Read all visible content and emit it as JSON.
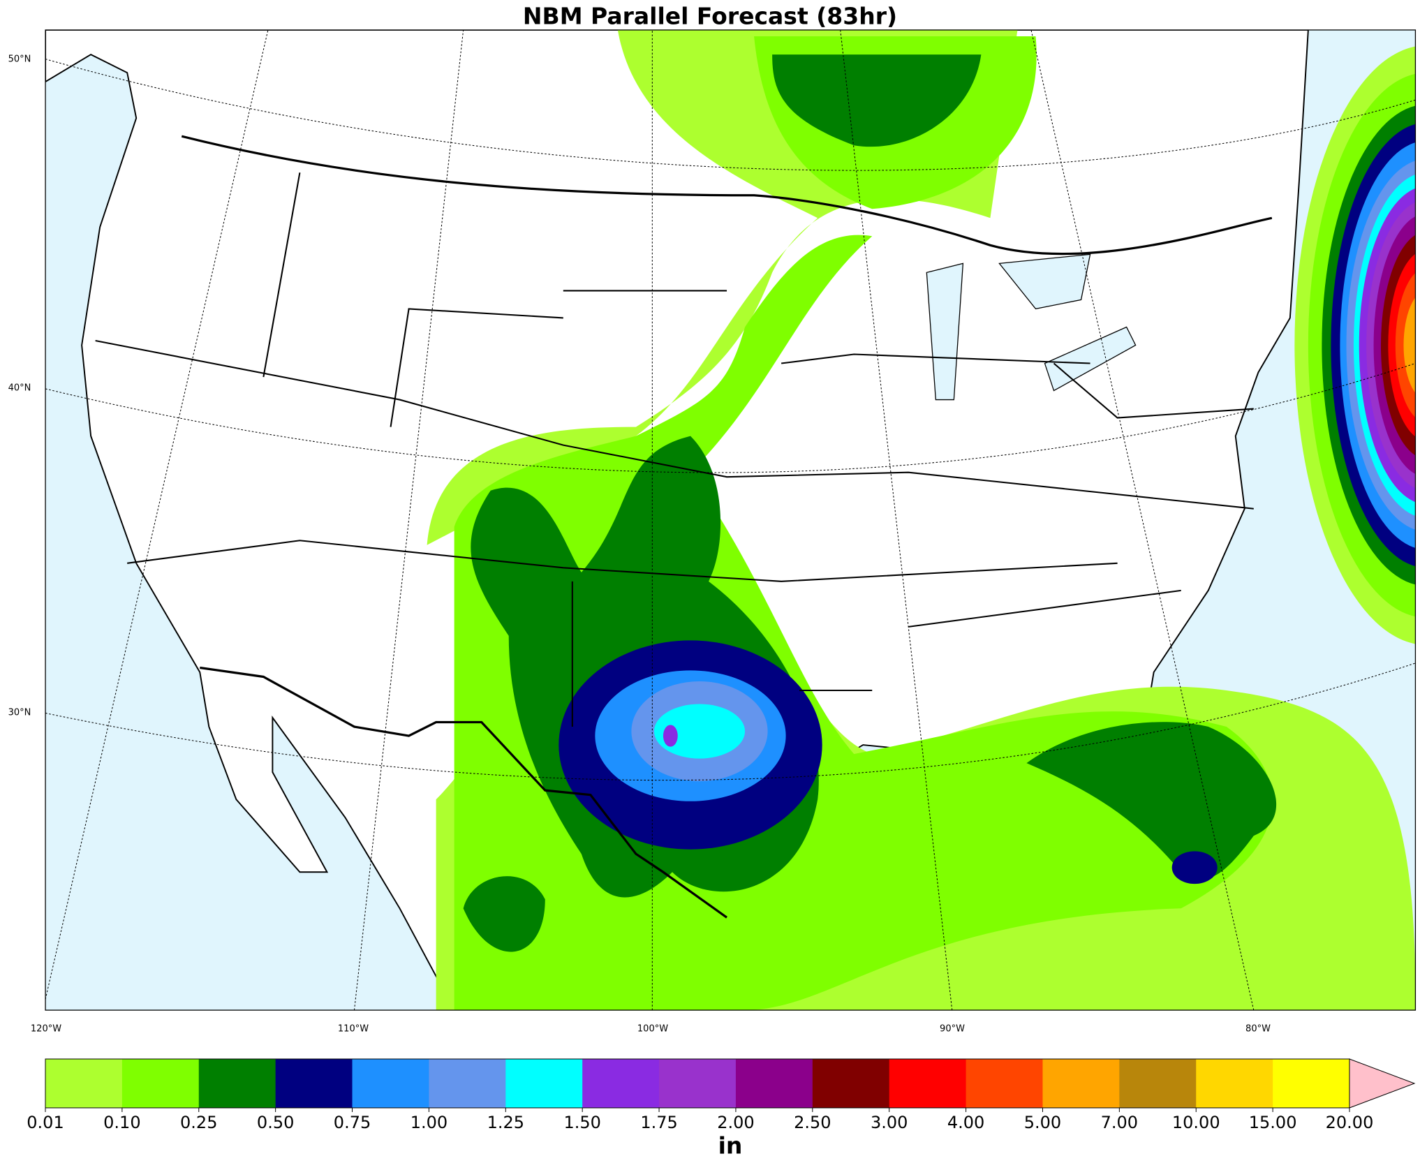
{
  "title": "NBM Parallel Forecast (83hr)",
  "map": {
    "lat_labels": [
      "50°N",
      "40°N",
      "30°N"
    ],
    "lon_labels": [
      "120°W",
      "110°W",
      "100°W",
      "90°W",
      "80°W"
    ]
  },
  "colorbar": {
    "levels": [
      {
        "value": 0.01,
        "label": "0.01"
      },
      {
        "value": 0.1,
        "label": "0.10"
      },
      {
        "value": 0.25,
        "label": "0.25"
      },
      {
        "value": 0.5,
        "label": "0.50"
      },
      {
        "value": 0.75,
        "label": "0.75"
      },
      {
        "value": 1,
        "label": "1.00"
      },
      {
        "value": 1.25,
        "label": "1.25"
      },
      {
        "value": 1.5,
        "label": "1.50"
      },
      {
        "value": 1.75,
        "label": "1.75"
      },
      {
        "value": 2,
        "label": "2.00"
      },
      {
        "value": 2.5,
        "label": "2.50"
      },
      {
        "value": 3,
        "label": "3.00"
      },
      {
        "value": 4,
        "label": "4.00"
      },
      {
        "value": 5,
        "label": "5.00"
      },
      {
        "value": 7,
        "label": "7.00"
      },
      {
        "value": 10,
        "label": "10.00"
      },
      {
        "value": 15,
        "label": "15.00"
      },
      {
        "value": 20,
        "label": "20.00"
      }
    ],
    "colors": [
      "#adff2f",
      "#7fff00",
      "#007f00",
      "#000080",
      "#1e90ff",
      "#6495ed",
      "#00ffff",
      "#8a2be2",
      "#9932cc",
      "#8b008b",
      "#800000",
      "#ff0000",
      "#ff4500",
      "#ffa500",
      "#b8860b",
      "#ffd700",
      "#ffff00"
    ],
    "extend_color": "#ffc0cb",
    "unit": "in"
  }
}
